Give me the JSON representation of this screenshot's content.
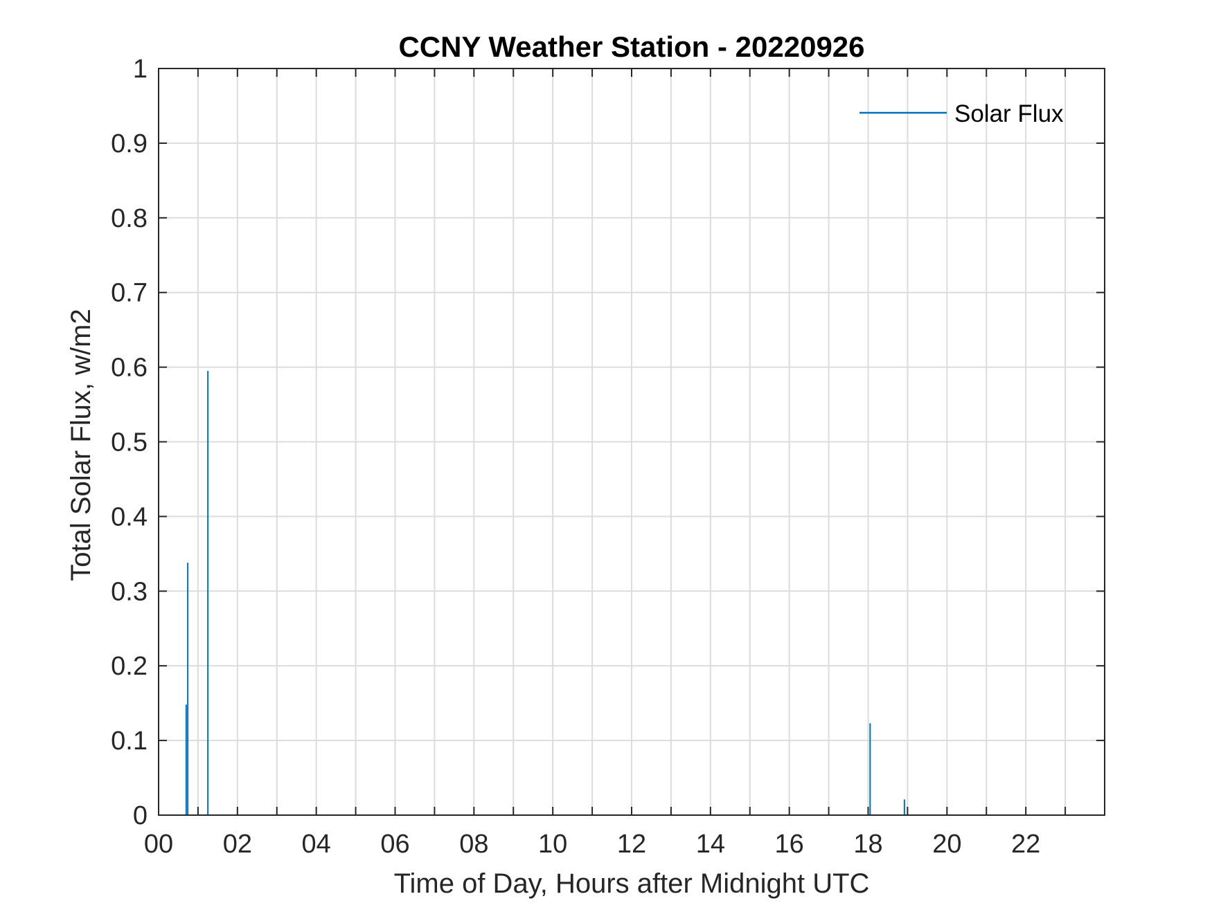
{
  "chart_data": {
    "type": "bar",
    "title": "CCNY Weather Station - 20220926",
    "xlabel": "Time of Day, Hours after Midnight UTC",
    "ylabel": "Total Solar Flux, w/m2",
    "xlim": [
      0,
      24
    ],
    "ylim": [
      0,
      1
    ],
    "x_ticks": [
      "00",
      "02",
      "04",
      "06",
      "08",
      "10",
      "12",
      "14",
      "16",
      "18",
      "20",
      "22"
    ],
    "x_tick_values": [
      0,
      2,
      4,
      6,
      8,
      10,
      12,
      14,
      16,
      18,
      20,
      22
    ],
    "x_grid_values": [
      0,
      1,
      2,
      3,
      4,
      5,
      6,
      7,
      8,
      9,
      10,
      11,
      12,
      13,
      14,
      15,
      16,
      17,
      18,
      19,
      20,
      21,
      22,
      23,
      24
    ],
    "y_ticks": [
      "0",
      "0.1",
      "0.2",
      "0.3",
      "0.4",
      "0.5",
      "0.6",
      "0.7",
      "0.8",
      "0.9",
      "1"
    ],
    "y_tick_values": [
      0,
      0.1,
      0.2,
      0.3,
      0.4,
      0.5,
      0.6,
      0.7,
      0.8,
      0.9,
      1
    ],
    "grid": true,
    "legend": {
      "position": "top-right",
      "entries": [
        "Solar Flux"
      ]
    },
    "series": [
      {
        "name": "Solar Flux",
        "color": "#0072BD",
        "x": [
          0.7,
          0.74,
          1.25,
          18.05,
          18.92
        ],
        "values": [
          0.148,
          0.338,
          0.595,
          0.123,
          0.021
        ]
      }
    ]
  }
}
